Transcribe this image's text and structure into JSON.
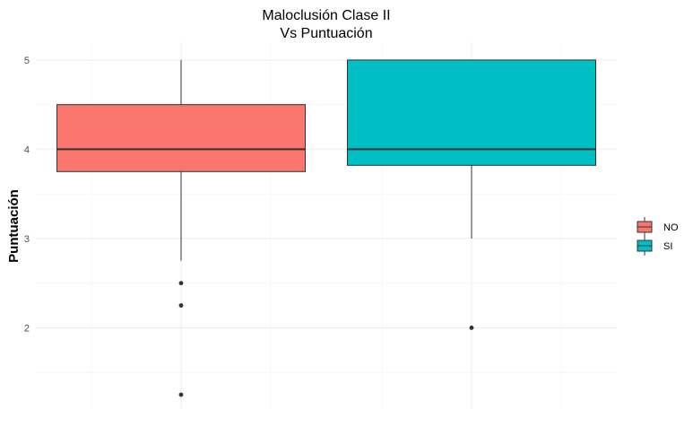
{
  "chart_data": {
    "type": "boxplot",
    "title": "Maloclusión Clase II",
    "subtitle": "Vs Puntuación",
    "xlabel": "",
    "ylabel": "Puntuación",
    "ylim": [
      1.1,
      5.2
    ],
    "yticks": [
      2,
      3,
      4,
      5
    ],
    "grid": true,
    "legend_position": "right",
    "series": [
      {
        "name": "NO",
        "color": "#F8766D",
        "q1": 3.75,
        "median": 4.0,
        "q3": 4.5,
        "whisker_low": 2.75,
        "whisker_high": 5.0,
        "outliers": [
          2.5,
          2.25,
          1.25
        ]
      },
      {
        "name": "SI",
        "color": "#00BFC4",
        "q1": 3.82,
        "median": 4.0,
        "q3": 5.0,
        "whisker_low": 3.0,
        "whisker_high": 5.0,
        "outliers": [
          2.0
        ]
      }
    ]
  }
}
